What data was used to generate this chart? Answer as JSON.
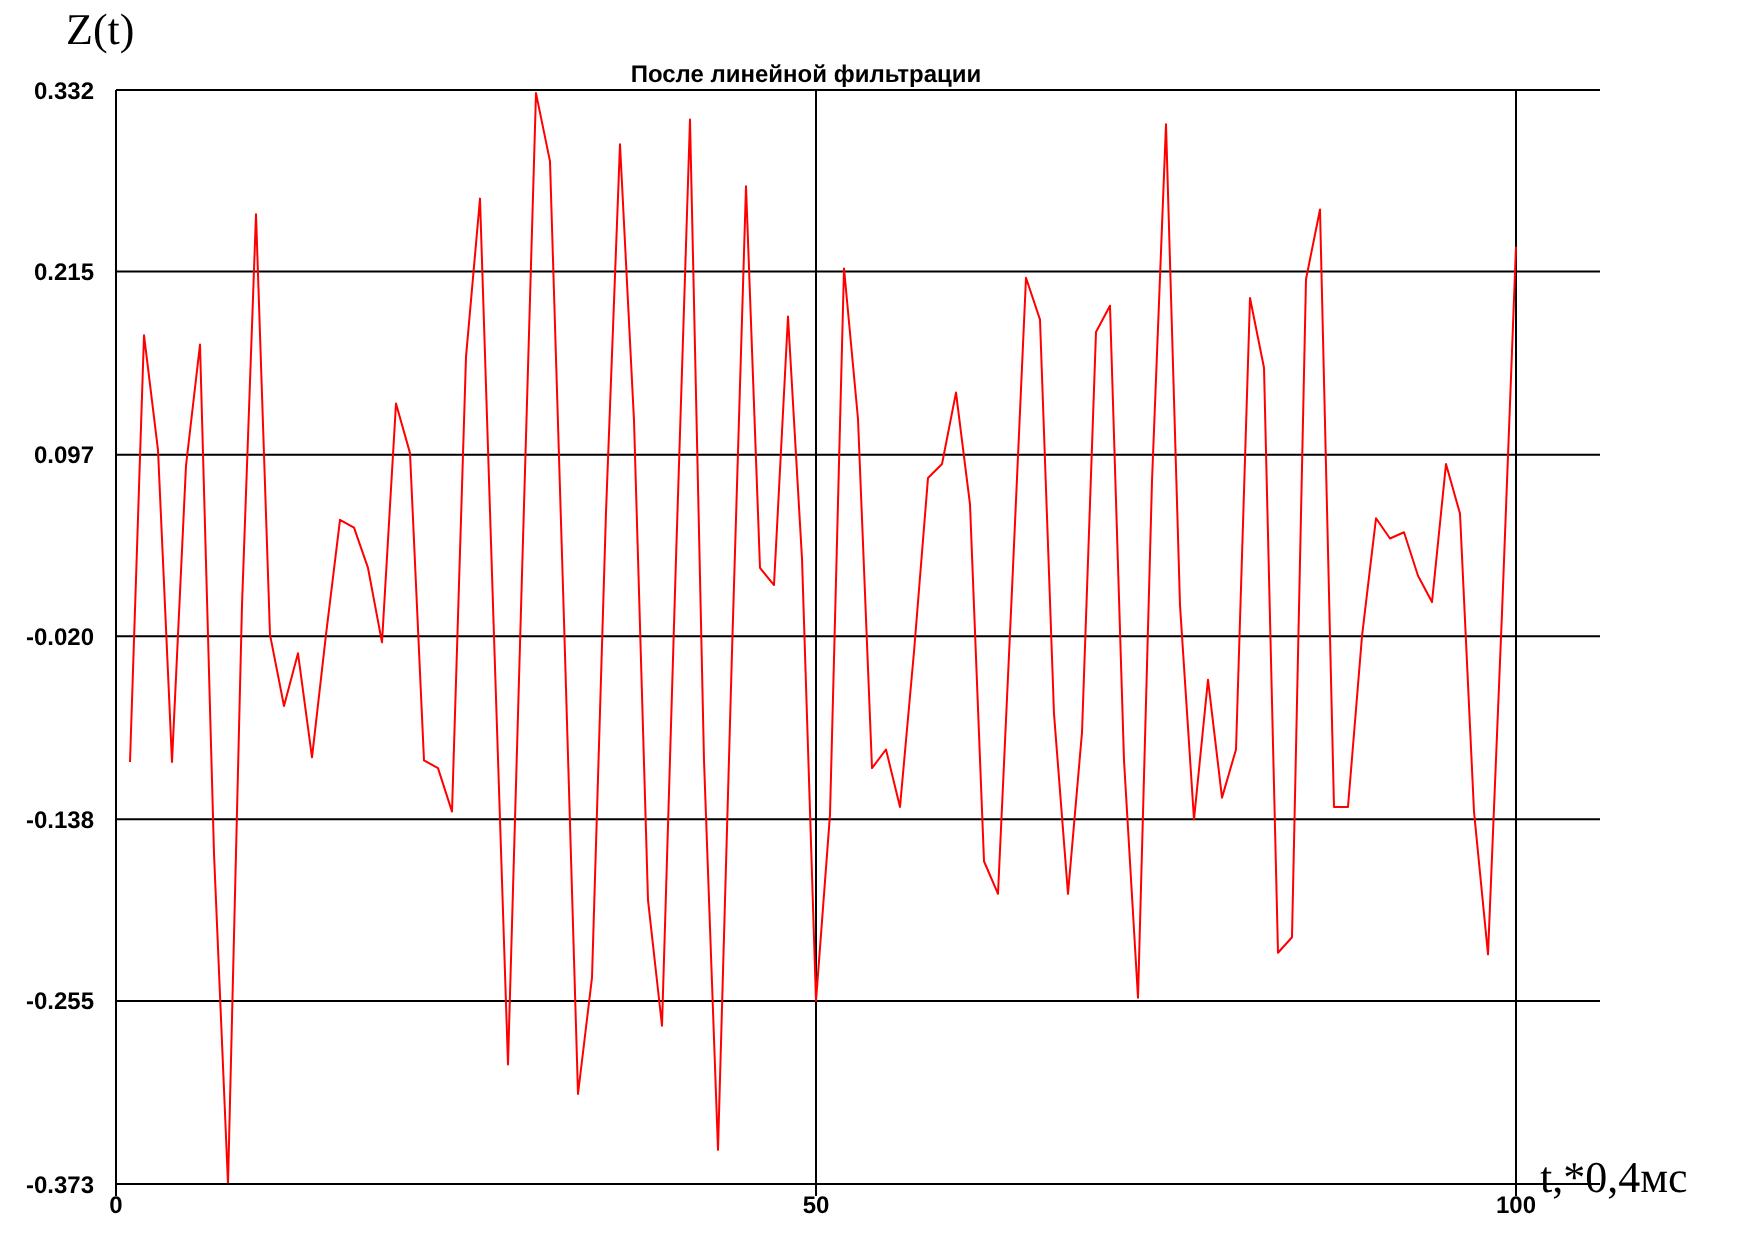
{
  "chart_data": {
    "type": "line",
    "title": "После линейной фильтрации",
    "xlabel": "t,*0,4мс",
    "ylabel": "Z(t)",
    "x": [
      1,
      2,
      3,
      4,
      5,
      6,
      7,
      8,
      9,
      10,
      11,
      12,
      13,
      14,
      15,
      16,
      17,
      18,
      19,
      20,
      21,
      22,
      23,
      24,
      25,
      26,
      27,
      28,
      29,
      30,
      31,
      32,
      33,
      34,
      35,
      36,
      37,
      38,
      39,
      40,
      41,
      42,
      43,
      44,
      45,
      46,
      47,
      48,
      49,
      50,
      51,
      52,
      53,
      54,
      55,
      56,
      57,
      58,
      59,
      60,
      61,
      62,
      63,
      64,
      65,
      66,
      67,
      68,
      69,
      70,
      71,
      72,
      73,
      74,
      75,
      76,
      77,
      78,
      79,
      80,
      81,
      82,
      83,
      84,
      85,
      86,
      87,
      88,
      89,
      90,
      91,
      92,
      93,
      94,
      95,
      96,
      97,
      98,
      99,
      100
    ],
    "series": [
      {
        "color": "#ff0000",
        "values": [
          -0.101,
          0.174,
          0.1,
          -0.101,
          0.09,
          0.168,
          -0.16,
          -0.373,
          0.0,
          0.252,
          -0.019,
          -0.065,
          -0.031,
          -0.098,
          -0.019,
          0.055,
          0.05,
          0.024,
          -0.024,
          0.13,
          0.098,
          -0.1,
          -0.105,
          -0.133,
          0.16,
          0.262,
          -0.02,
          -0.296,
          0.02,
          0.33,
          0.286,
          -0.01,
          -0.315,
          -0.24,
          0.06,
          0.297,
          0.119,
          -0.19,
          -0.271,
          0.03,
          0.313,
          -0.1,
          -0.351,
          -0.03,
          0.27,
          0.024,
          0.013,
          0.186,
          0.03,
          -0.255,
          -0.135,
          0.217,
          0.12,
          -0.105,
          -0.093,
          -0.13,
          -0.03,
          0.082,
          0.091,
          0.137,
          0.065,
          -0.165,
          -0.186,
          0.01,
          0.211,
          0.184,
          -0.07,
          -0.186,
          -0.082,
          0.176,
          0.193,
          -0.1,
          -0.253,
          0.08,
          0.31,
          0.0,
          -0.138,
          -0.048,
          -0.124,
          -0.093,
          0.198,
          0.153,
          -0.224,
          -0.214,
          0.21,
          0.255,
          -0.13,
          -0.13,
          -0.02,
          0.056,
          0.043,
          0.047,
          0.019,
          0.002,
          0.091,
          0.059,
          -0.133,
          -0.225,
          -0.005,
          0.231
        ]
      }
    ],
    "xlim": [
      0,
      106
    ],
    "xticks": [
      0,
      50,
      100
    ],
    "ylim": [
      -0.373,
      0.332
    ],
    "yticks": [
      -0.373,
      -0.255,
      -0.138,
      {
        "value": -0.02,
        "label": "-0.020"
      },
      0.097,
      0.215,
      0.332
    ],
    "grid": true,
    "marker": "none",
    "line_style": "solid"
  }
}
